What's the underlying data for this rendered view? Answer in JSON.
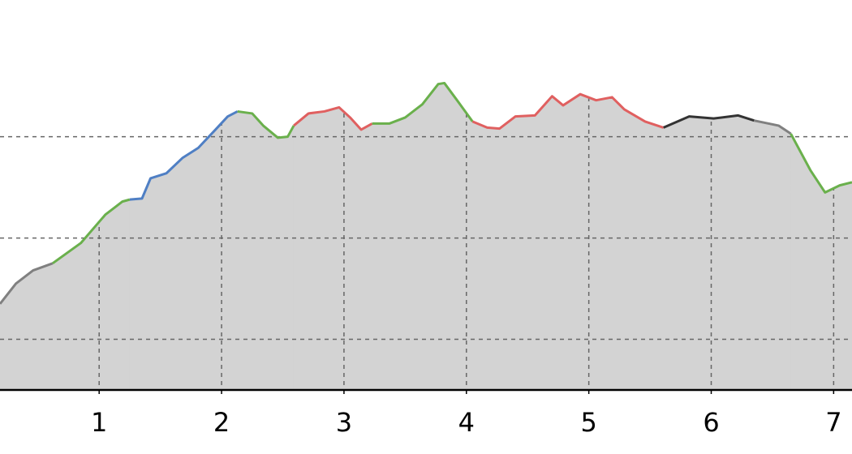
{
  "chart_data": {
    "type": "area",
    "xlim": [
      0.19,
      7.15
    ],
    "ylim": [
      0,
      3.85
    ],
    "xticks": [
      1,
      2,
      3,
      4,
      5,
      6,
      7
    ],
    "yticks": [
      0.5,
      1.5,
      2.5
    ],
    "grid": true,
    "fill": "#d3d3d3",
    "series": [
      {
        "color": "#808080",
        "x": [
          0.19,
          0.32,
          0.46,
          0.62
        ],
        "values": [
          0.85,
          1.05,
          1.18,
          1.25
        ]
      },
      {
        "color": "#6ab04c",
        "x": [
          0.62,
          0.85,
          1.05,
          1.19,
          1.25
        ],
        "values": [
          1.25,
          1.45,
          1.73,
          1.86,
          1.88
        ]
      },
      {
        "color": "#4f7fc4",
        "x": [
          1.25,
          1.35,
          1.42,
          1.55,
          1.68,
          1.81,
          1.95,
          2.05,
          2.13
        ],
        "values": [
          1.88,
          1.89,
          2.09,
          2.14,
          2.29,
          2.39,
          2.57,
          2.7,
          2.75
        ]
      },
      {
        "color": "#6ab04c",
        "x": [
          2.13,
          2.25,
          2.34,
          2.46,
          2.54,
          2.59
        ],
        "values": [
          2.75,
          2.73,
          2.61,
          2.49,
          2.5,
          2.61
        ]
      },
      {
        "color": "#e06060",
        "x": [
          2.59,
          2.71,
          2.84,
          2.96,
          3.05,
          3.14,
          3.23
        ],
        "values": [
          2.61,
          2.73,
          2.75,
          2.79,
          2.69,
          2.57,
          2.63
        ]
      },
      {
        "color": "#6ab04c",
        "x": [
          3.23,
          3.37,
          3.5,
          3.64,
          3.77,
          3.82,
          3.93,
          4.05
        ],
        "values": [
          2.63,
          2.63,
          2.69,
          2.82,
          3.02,
          3.03,
          2.85,
          2.65
        ]
      },
      {
        "color": "#e06060",
        "x": [
          4.05,
          4.17,
          4.27,
          4.4,
          4.56,
          4.7,
          4.79,
          4.93,
          5.06,
          5.19,
          5.29,
          5.46,
          5.61
        ],
        "values": [
          2.65,
          2.59,
          2.58,
          2.7,
          2.71,
          2.9,
          2.81,
          2.92,
          2.86,
          2.89,
          2.77,
          2.65,
          2.59
        ]
      },
      {
        "color": "#333333",
        "x": [
          5.61,
          5.82,
          6.02,
          6.22,
          6.35
        ],
        "values": [
          2.59,
          2.7,
          2.68,
          2.71,
          2.66
        ]
      },
      {
        "color": "#808080",
        "x": [
          6.35,
          6.55,
          6.65
        ],
        "values": [
          2.66,
          2.61,
          2.53
        ]
      },
      {
        "color": "#6ab04c",
        "x": [
          6.65,
          6.81,
          6.93,
          7.05,
          7.15
        ],
        "values": [
          2.53,
          2.17,
          1.95,
          2.02,
          2.05
        ]
      }
    ]
  }
}
